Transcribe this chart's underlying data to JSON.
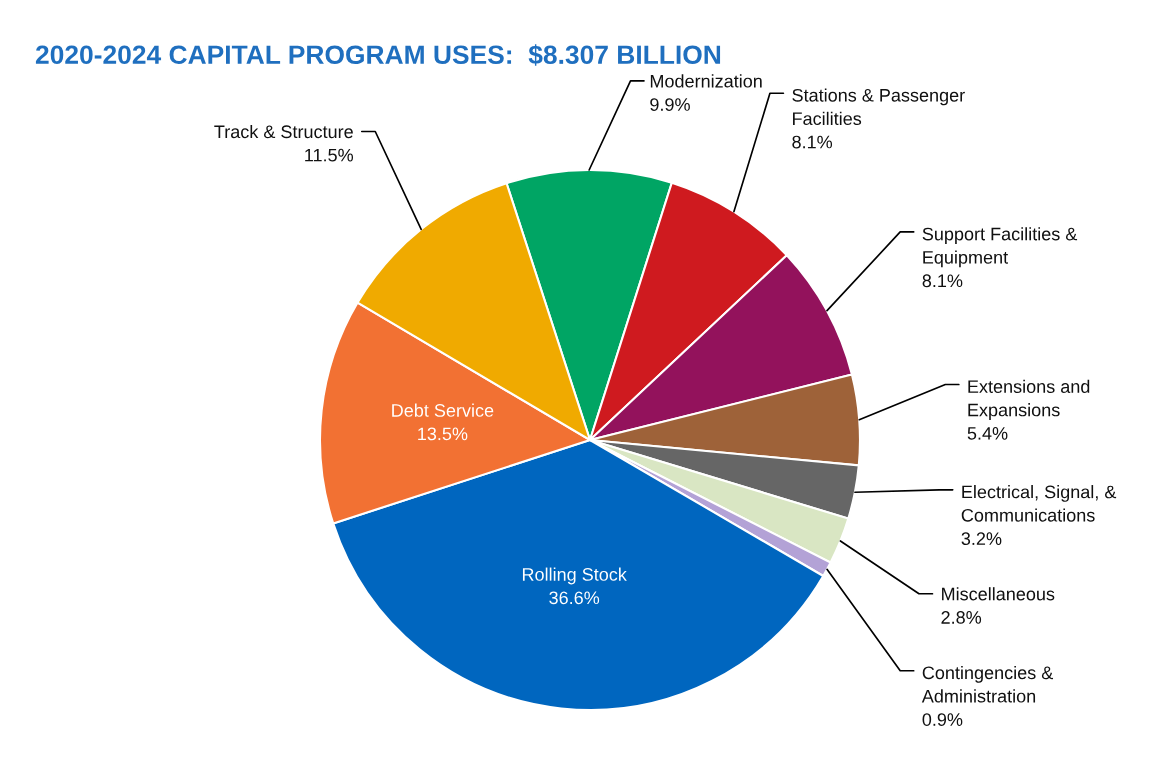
{
  "chart_data": {
    "type": "pie",
    "title": "2020-2024 CAPITAL PROGRAM USES:  $8.307 BILLION",
    "categories": [
      "Modernization",
      "Stations & Passenger\nFacilities",
      "Support Facilities &\nEquipment",
      "Extensions and\nExpansions",
      "Electrical, Signal, &\nCommunications",
      "Miscellaneous",
      "Contingencies &\nAdministration",
      "Rolling Stock",
      "Debt Service",
      "Track & Structure"
    ],
    "values": [
      9.9,
      8.1,
      8.1,
      5.4,
      3.2,
      2.8,
      0.9,
      36.6,
      13.5,
      11.5
    ],
    "value_labels": [
      "9.9%",
      "8.1%",
      "8.1%",
      "5.4%",
      "3.2%",
      "2.8%",
      "0.9%",
      "36.6%",
      "13.5%",
      "11.5%"
    ],
    "colors": [
      "#00a564",
      "#cf1a1f",
      "#93125c",
      "#9e6239",
      "#666666",
      "#d9e6c3",
      "#b3a2d6",
      "#0066bf",
      "#f27133",
      "#f0aa00"
    ]
  }
}
